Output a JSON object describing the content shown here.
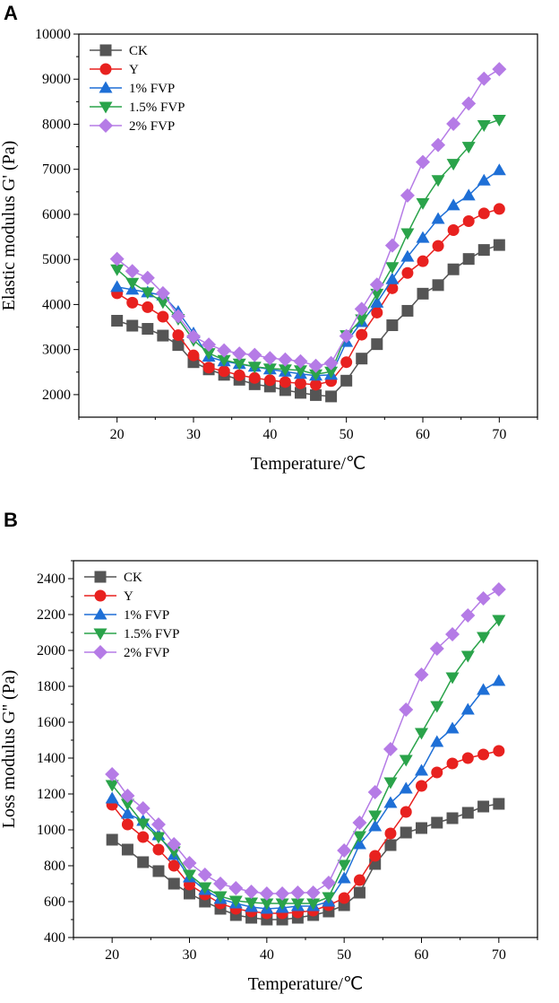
{
  "chart_data": [
    {
      "panel": "A",
      "type": "line",
      "xlabel": "Temperature/℃",
      "ylabel": "Elastic modulus G' (Pa)",
      "xlim": [
        15,
        75
      ],
      "ylim": [
        1500,
        10000
      ],
      "xticks": [
        20,
        30,
        40,
        50,
        60,
        70
      ],
      "yticks": [
        2000,
        3000,
        4000,
        5000,
        6000,
        7000,
        8000,
        9000,
        10000
      ],
      "legend_position": "top-left",
      "x": [
        20,
        22,
        24,
        26,
        28,
        30,
        32,
        34,
        36,
        38,
        40,
        42,
        44,
        46,
        48,
        50,
        52,
        54,
        56,
        58,
        60,
        62,
        64,
        66,
        68,
        70
      ],
      "series": [
        {
          "name": "CK",
          "color": "#555555",
          "marker": "square",
          "values": [
            3640,
            3530,
            3460,
            3310,
            3100,
            2720,
            2560,
            2440,
            2330,
            2230,
            2180,
            2100,
            2040,
            1990,
            1960,
            2310,
            2800,
            3120,
            3540,
            3860,
            4240,
            4430,
            4780,
            5010,
            5210,
            5320
          ]
        },
        {
          "name": "Y",
          "color": "#e8211f",
          "marker": "circle",
          "values": [
            4250,
            4040,
            3940,
            3730,
            3320,
            2870,
            2600,
            2520,
            2430,
            2370,
            2320,
            2280,
            2250,
            2220,
            2300,
            2720,
            3330,
            3820,
            4360,
            4700,
            4960,
            5300,
            5650,
            5850,
            6020,
            6120
          ]
        },
        {
          "name": "1% FVP",
          "color": "#1e6fd6",
          "marker": "triangle-up",
          "values": [
            4390,
            4330,
            4270,
            4200,
            3840,
            3360,
            2840,
            2740,
            2680,
            2620,
            2560,
            2510,
            2460,
            2420,
            2440,
            3170,
            3610,
            4040,
            4560,
            5060,
            5480,
            5900,
            6200,
            6420,
            6750,
            6980
          ]
        },
        {
          "name": "1.5% FVP",
          "color": "#2aa34a",
          "marker": "triangle-down",
          "values": [
            4780,
            4480,
            4270,
            4050,
            3680,
            3210,
            2920,
            2770,
            2690,
            2620,
            2580,
            2560,
            2540,
            2450,
            2510,
            3320,
            3670,
            4240,
            4830,
            5580,
            6250,
            6760,
            7120,
            7500,
            7980,
            8100
          ]
        },
        {
          "name": "2% FVP",
          "color": "#b57be6",
          "marker": "diamond",
          "values": [
            5010,
            4740,
            4590,
            4250,
            3740,
            3290,
            3110,
            2980,
            2910,
            2880,
            2810,
            2780,
            2740,
            2640,
            2700,
            3300,
            3900,
            4440,
            5310,
            6420,
            7160,
            7540,
            8010,
            8460,
            9010,
            9220
          ]
        }
      ]
    },
    {
      "panel": "B",
      "type": "line",
      "xlabel": "Temperature/℃",
      "ylabel": "Loss modulus G'' (Pa)",
      "xlim": [
        15,
        75
      ],
      "ylim": [
        400,
        2500
      ],
      "xticks": [
        20,
        30,
        40,
        50,
        60,
        70
      ],
      "yticks": [
        400,
        600,
        800,
        1000,
        1200,
        1400,
        1600,
        1800,
        2000,
        2200,
        2400
      ],
      "legend_position": "top-left",
      "x": [
        20,
        22,
        24,
        26,
        28,
        30,
        32,
        34,
        36,
        38,
        40,
        42,
        44,
        46,
        48,
        50,
        52,
        54,
        56,
        58,
        60,
        62,
        64,
        66,
        68,
        70
      ],
      "series": [
        {
          "name": "CK",
          "color": "#555555",
          "marker": "square",
          "values": [
            945,
            890,
            820,
            770,
            700,
            645,
            600,
            560,
            525,
            510,
            500,
            500,
            510,
            525,
            545,
            580,
            650,
            810,
            915,
            985,
            1010,
            1040,
            1065,
            1095,
            1130,
            1145
          ]
        },
        {
          "name": "Y",
          "color": "#e8211f",
          "marker": "circle",
          "values": [
            1140,
            1030,
            960,
            890,
            800,
            695,
            640,
            590,
            560,
            545,
            535,
            535,
            540,
            550,
            580,
            620,
            720,
            855,
            980,
            1100,
            1245,
            1320,
            1370,
            1400,
            1420,
            1440
          ]
        },
        {
          "name": "1% FVP",
          "color": "#1e6fd6",
          "marker": "triangle-up",
          "values": [
            1175,
            1090,
            1050,
            970,
            860,
            735,
            665,
            615,
            590,
            570,
            560,
            565,
            575,
            575,
            600,
            730,
            920,
            1020,
            1150,
            1230,
            1330,
            1490,
            1565,
            1670,
            1780,
            1830
          ]
        },
        {
          "name": "1.5% FVP",
          "color": "#2aa34a",
          "marker": "triangle-down",
          "values": [
            1250,
            1145,
            1035,
            960,
            880,
            750,
            680,
            630,
            605,
            595,
            590,
            590,
            590,
            590,
            625,
            805,
            965,
            1080,
            1265,
            1390,
            1540,
            1690,
            1850,
            1970,
            2075,
            2170
          ]
        },
        {
          "name": "2% FVP",
          "color": "#b57be6",
          "marker": "diamond",
          "values": [
            1310,
            1190,
            1120,
            1030,
            920,
            815,
            750,
            700,
            675,
            655,
            645,
            645,
            650,
            650,
            705,
            885,
            1040,
            1210,
            1450,
            1670,
            1865,
            2010,
            2090,
            2195,
            2290,
            2340
          ]
        }
      ]
    }
  ]
}
